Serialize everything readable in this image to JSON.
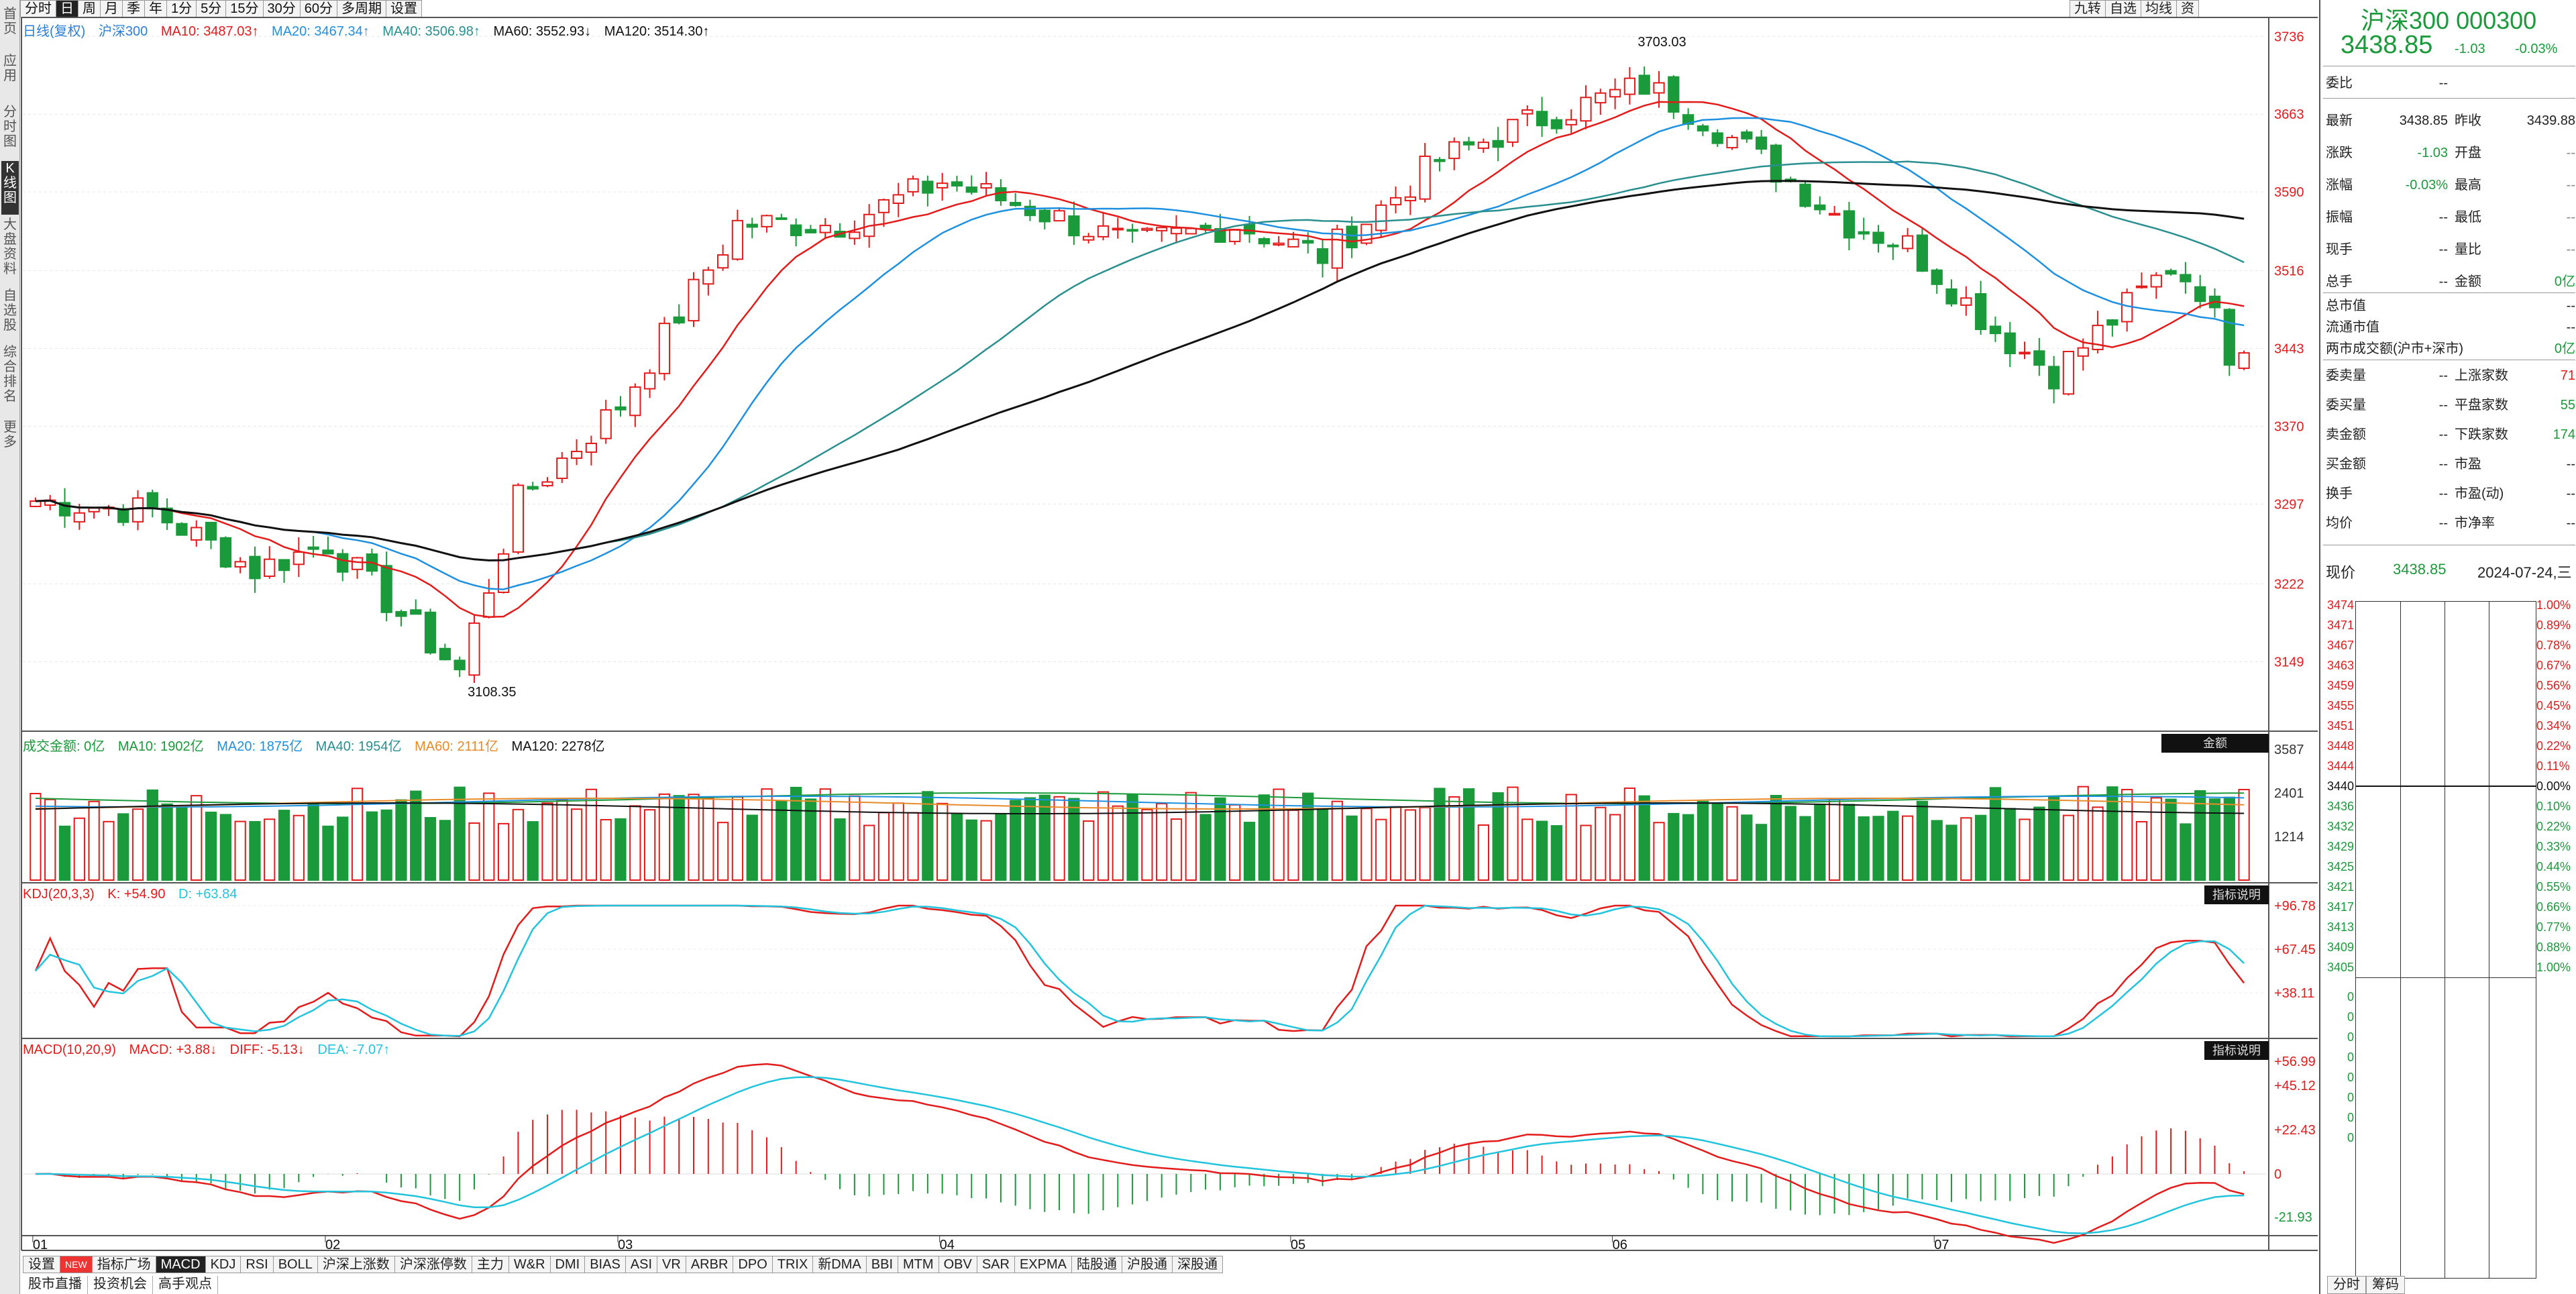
{
  "toolbar": {
    "periods": [
      "分时",
      "日",
      "周",
      "月",
      "季",
      "年",
      "1分",
      "5分",
      "15分",
      "30分",
      "60分",
      "多周期",
      "设置"
    ],
    "active_period": "日",
    "right_tabs": [
      "九转",
      "自选",
      "均线",
      "资"
    ]
  },
  "left_tabs": [
    "首页",
    "应用",
    "分时图",
    "K线图",
    "大盘资料",
    "自选股",
    "综合排名",
    "更多"
  ],
  "main_legend": {
    "label": "日线(复权)",
    "symbol": "沪深300",
    "ma10": "MA10: 3487.03↑",
    "ma20": "MA20: 3467.34↑",
    "ma40": "MA40: 3506.98↑",
    "ma60": "MA60: 3552.93↓",
    "ma120": "MA120: 3514.30↑"
  },
  "vol_legend": {
    "label": "成交金额: 0亿",
    "ma10": "MA10: 1902亿",
    "ma20": "MA20: 1875亿",
    "ma40": "MA40: 1954亿",
    "ma60": "MA60: 2111亿",
    "ma120": "MA120: 2278亿",
    "pane_button": "金额"
  },
  "kdj_legend": {
    "label": "KDJ(20,3,3)",
    "k": "K: +54.90",
    "d": "D: +63.84",
    "pane_button": "指标说明"
  },
  "macd_legend": {
    "label": "MACD(10,20,9)",
    "macd": "MACD: +3.88↓",
    "diff": "DIFF: -5.13↓",
    "dea": "DEA: -7.07↑",
    "pane_button": "指标说明"
  },
  "colors": {
    "up": "#e31b1b",
    "down": "#1a9a3a",
    "ma10": "#e31b1b",
    "ma20": "#1e90e0",
    "ma40": "#2a8f8f",
    "ma120": "#111111",
    "kdj_k": "#e31b1b",
    "kdj_d": "#22c4dd"
  },
  "chart_data": [
    {
      "type": "candlestick",
      "title": "沪深300 日线(复权)",
      "y_ticks": [
        3736,
        3663,
        3590,
        3516,
        3443,
        3370,
        3297,
        3222,
        3149
      ],
      "ylim": [
        3090,
        3745
      ],
      "x_tick_labels": [
        "01",
        "02",
        "03",
        "04",
        "05",
        "06",
        "07"
      ],
      "annotations": {
        "high": "3703.03",
        "low": "3108.35"
      },
      "series_description": "Daily OHLC bars Jan 2024 - Jul 24 2024 with MA10/MA20/MA40/MA120 overlays",
      "last_close": 3438.85
    },
    {
      "type": "bar",
      "title": "成交金额",
      "y_ticks": [
        3587,
        2401,
        1214
      ]
    },
    {
      "type": "line",
      "title": "KDJ(20,3,3)",
      "y_ticks": [
        "+96.78",
        "+67.45",
        "+38.11"
      ]
    },
    {
      "type": "line",
      "title": "MACD(10,20,9)",
      "y_ticks": [
        "+56.99",
        "+45.12",
        "+22.43",
        "0",
        "-21.93"
      ]
    }
  ],
  "indicator_tabs": [
    "设置",
    "NEW",
    "指标广场",
    "MACD",
    "KDJ",
    "RSI",
    "BOLL",
    "沪深上涨数",
    "沪深涨停数",
    "主力",
    "W&R",
    "DMI",
    "BIAS",
    "ASI",
    "VR",
    "ARBR",
    "DPO",
    "TRIX",
    "新DMA",
    "BBI",
    "MTM",
    "OBV",
    "SAR",
    "EXPMA",
    "陆股通",
    "沪股通",
    "深股通"
  ],
  "active_indicator": "MACD",
  "status_bar": [
    "股市直播",
    "投资机会",
    "高手观点"
  ],
  "quote": {
    "title": "沪深300 000300",
    "price": "3438.85",
    "change": "-1.03",
    "change_pct": "-0.03%",
    "rows": [
      {
        "k": "委比",
        "v": "--",
        "k2": "",
        "v2": ""
      },
      {
        "k": "最新",
        "v": "3438.85",
        "k2": "昨收",
        "v2": "3439.88"
      },
      {
        "k": "涨跌",
        "v": "-1.03",
        "k2": "开盘",
        "v2": "--"
      },
      {
        "k": "涨幅",
        "v": "-0.03%",
        "k2": "最高",
        "v2": "--"
      },
      {
        "k": "振幅",
        "v": "--",
        "k2": "最低",
        "v2": "--"
      },
      {
        "k": "现手",
        "v": "--",
        "k2": "量比",
        "v2": "--"
      },
      {
        "k": "总手",
        "v": "--",
        "k2": "金额",
        "v2": "0亿"
      }
    ],
    "rows2": [
      {
        "k": "总市值",
        "v": "--"
      },
      {
        "k": "流通市值",
        "v": "--"
      },
      {
        "k": "两市成交额(沪市+深市)",
        "v": "0亿"
      }
    ],
    "rows3": [
      {
        "k": "委卖量",
        "v": "--",
        "k2": "上涨家数",
        "v2": "71"
      },
      {
        "k": "委买量",
        "v": "--",
        "k2": "平盘家数",
        "v2": "55"
      },
      {
        "k": "卖金额",
        "v": "--",
        "k2": "下跌家数",
        "v2": "174"
      },
      {
        "k": "买金额",
        "v": "--",
        "k2": "市盈",
        "v2": "--"
      },
      {
        "k": "换手",
        "v": "--",
        "k2": "市盈(动)",
        "v2": "--"
      },
      {
        "k": "均价",
        "v": "--",
        "k2": "市净率",
        "v2": "--"
      }
    ],
    "now_label": "现价",
    "now_value": "3438.85",
    "now_date": "2024-07-24,三",
    "depth_prices": [
      "3474",
      "3471",
      "3467",
      "3463",
      "3459",
      "3455",
      "3451",
      "3448",
      "3444",
      "3440",
      "3436",
      "3432",
      "3429",
      "3425",
      "3421",
      "3417",
      "3413",
      "3409",
      "3405"
    ],
    "depth_pcts": [
      "1.00%",
      "0.89%",
      "0.78%",
      "0.67%",
      "0.56%",
      "0.45%",
      "0.34%",
      "0.22%",
      "0.11%",
      "0.00%",
      "0.10%",
      "0.22%",
      "0.33%",
      "0.44%",
      "0.55%",
      "0.66%",
      "0.77%",
      "0.88%",
      "1.00%"
    ],
    "depth_lower_values": [
      "0",
      "0",
      "0",
      "0",
      "0",
      "0",
      "0",
      "0"
    ],
    "bottom_tabs": [
      "分时",
      "筹码"
    ]
  }
}
